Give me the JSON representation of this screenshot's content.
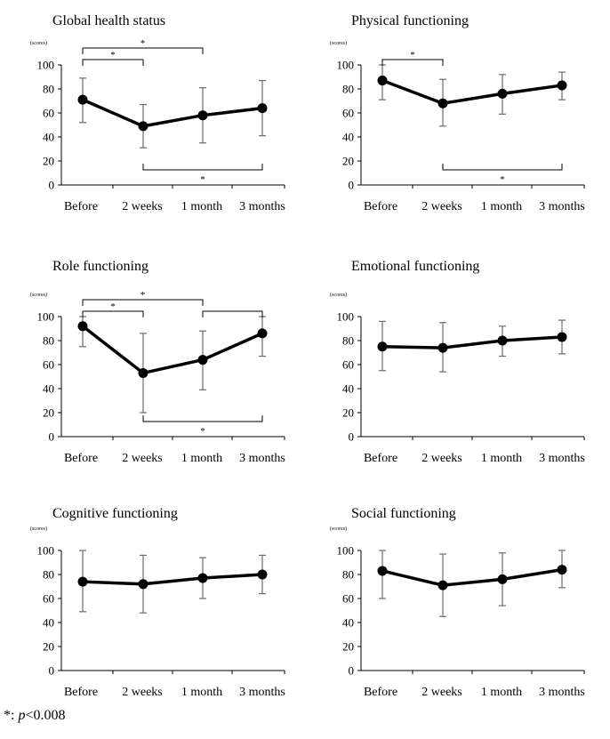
{
  "footnote": {
    "prefix": "*: ",
    "p": "p",
    "rest": "<0.008"
  },
  "chart_data": [
    {
      "type": "line",
      "title": "Global health status",
      "unit_label": "(scores)",
      "categories": [
        "Before",
        "2 weeks",
        "1 month",
        "3 months"
      ],
      "ylim": [
        0,
        100
      ],
      "yticks": [
        0,
        20,
        40,
        60,
        80,
        100
      ],
      "values": [
        71,
        49,
        58,
        64
      ],
      "err_upper": [
        89,
        67,
        81,
        87
      ],
      "err_lower": [
        52,
        31,
        35,
        41
      ],
      "brackets": [
        {
          "from": 0,
          "to": 1,
          "side": "top",
          "level": 1,
          "label": "*"
        },
        {
          "from": 0,
          "to": 2,
          "side": "top",
          "level": 2,
          "label": "*"
        },
        {
          "from": 1,
          "to": 3,
          "side": "bottom",
          "level": 1,
          "label": "*"
        }
      ]
    },
    {
      "type": "line",
      "title": "Physical functioning",
      "unit_label": "(scores)",
      "categories": [
        "Before",
        "2 weeks",
        "1 month",
        "3 months"
      ],
      "ylim": [
        0,
        100
      ],
      "yticks": [
        0,
        20,
        40,
        60,
        80,
        100
      ],
      "values": [
        87,
        68,
        76,
        83
      ],
      "err_upper": [
        100,
        88,
        92,
        94
      ],
      "err_lower": [
        71,
        49,
        59,
        71
      ],
      "brackets": [
        {
          "from": 0,
          "to": 1,
          "side": "top",
          "level": 1,
          "label": "*"
        },
        {
          "from": 1,
          "to": 3,
          "side": "bottom",
          "level": 1,
          "label": "*"
        }
      ]
    },
    {
      "type": "line",
      "title": "Role functioning",
      "unit_label": "(scores)",
      "categories": [
        "Before",
        "2 weeks",
        "1 month",
        "3 months"
      ],
      "ylim": [
        0,
        100
      ],
      "yticks": [
        0,
        20,
        40,
        60,
        80,
        100
      ],
      "values": [
        92,
        53,
        64,
        86
      ],
      "err_upper": [
        100,
        86,
        88,
        100
      ],
      "err_lower": [
        75,
        20,
        39,
        67
      ],
      "brackets": [
        {
          "from": 0,
          "to": 1,
          "side": "top",
          "level": 1,
          "label": "*"
        },
        {
          "from": 0,
          "to": 2,
          "side": "top",
          "level": 2,
          "label": "*"
        },
        {
          "from": 2,
          "to": 3,
          "side": "top",
          "level": 1,
          "label": ""
        },
        {
          "from": 1,
          "to": 3,
          "side": "bottom",
          "level": 1,
          "label": "*"
        }
      ]
    },
    {
      "type": "line",
      "title": "Emotional functioning",
      "unit_label": "(scores)",
      "categories": [
        "Before",
        "2 weeks",
        "1 month",
        "3 months"
      ],
      "ylim": [
        0,
        100
      ],
      "yticks": [
        0,
        20,
        40,
        60,
        80,
        100
      ],
      "values": [
        75,
        74,
        80,
        83
      ],
      "err_upper": [
        96,
        95,
        92,
        97
      ],
      "err_lower": [
        55,
        54,
        67,
        69
      ],
      "brackets": []
    },
    {
      "type": "line",
      "title": "Cognitive functioning",
      "unit_label": "(scores)",
      "categories": [
        "Before",
        "2 weeks",
        "1 month",
        "3 months"
      ],
      "ylim": [
        0,
        100
      ],
      "yticks": [
        0,
        20,
        40,
        60,
        80,
        100
      ],
      "values": [
        74,
        72,
        77,
        80
      ],
      "err_upper": [
        100,
        96,
        94,
        96
      ],
      "err_lower": [
        49,
        48,
        60,
        64
      ],
      "brackets": []
    },
    {
      "type": "line",
      "title": "Social functioning",
      "unit_label": "(scores)",
      "categories": [
        "Before",
        "2 weeks",
        "1 month",
        "3 months"
      ],
      "ylim": [
        0,
        100
      ],
      "yticks": [
        0,
        20,
        40,
        60,
        80,
        100
      ],
      "values": [
        83,
        71,
        76,
        84
      ],
      "err_upper": [
        100,
        97,
        98,
        100
      ],
      "err_lower": [
        60,
        45,
        54,
        69
      ],
      "brackets": []
    }
  ]
}
